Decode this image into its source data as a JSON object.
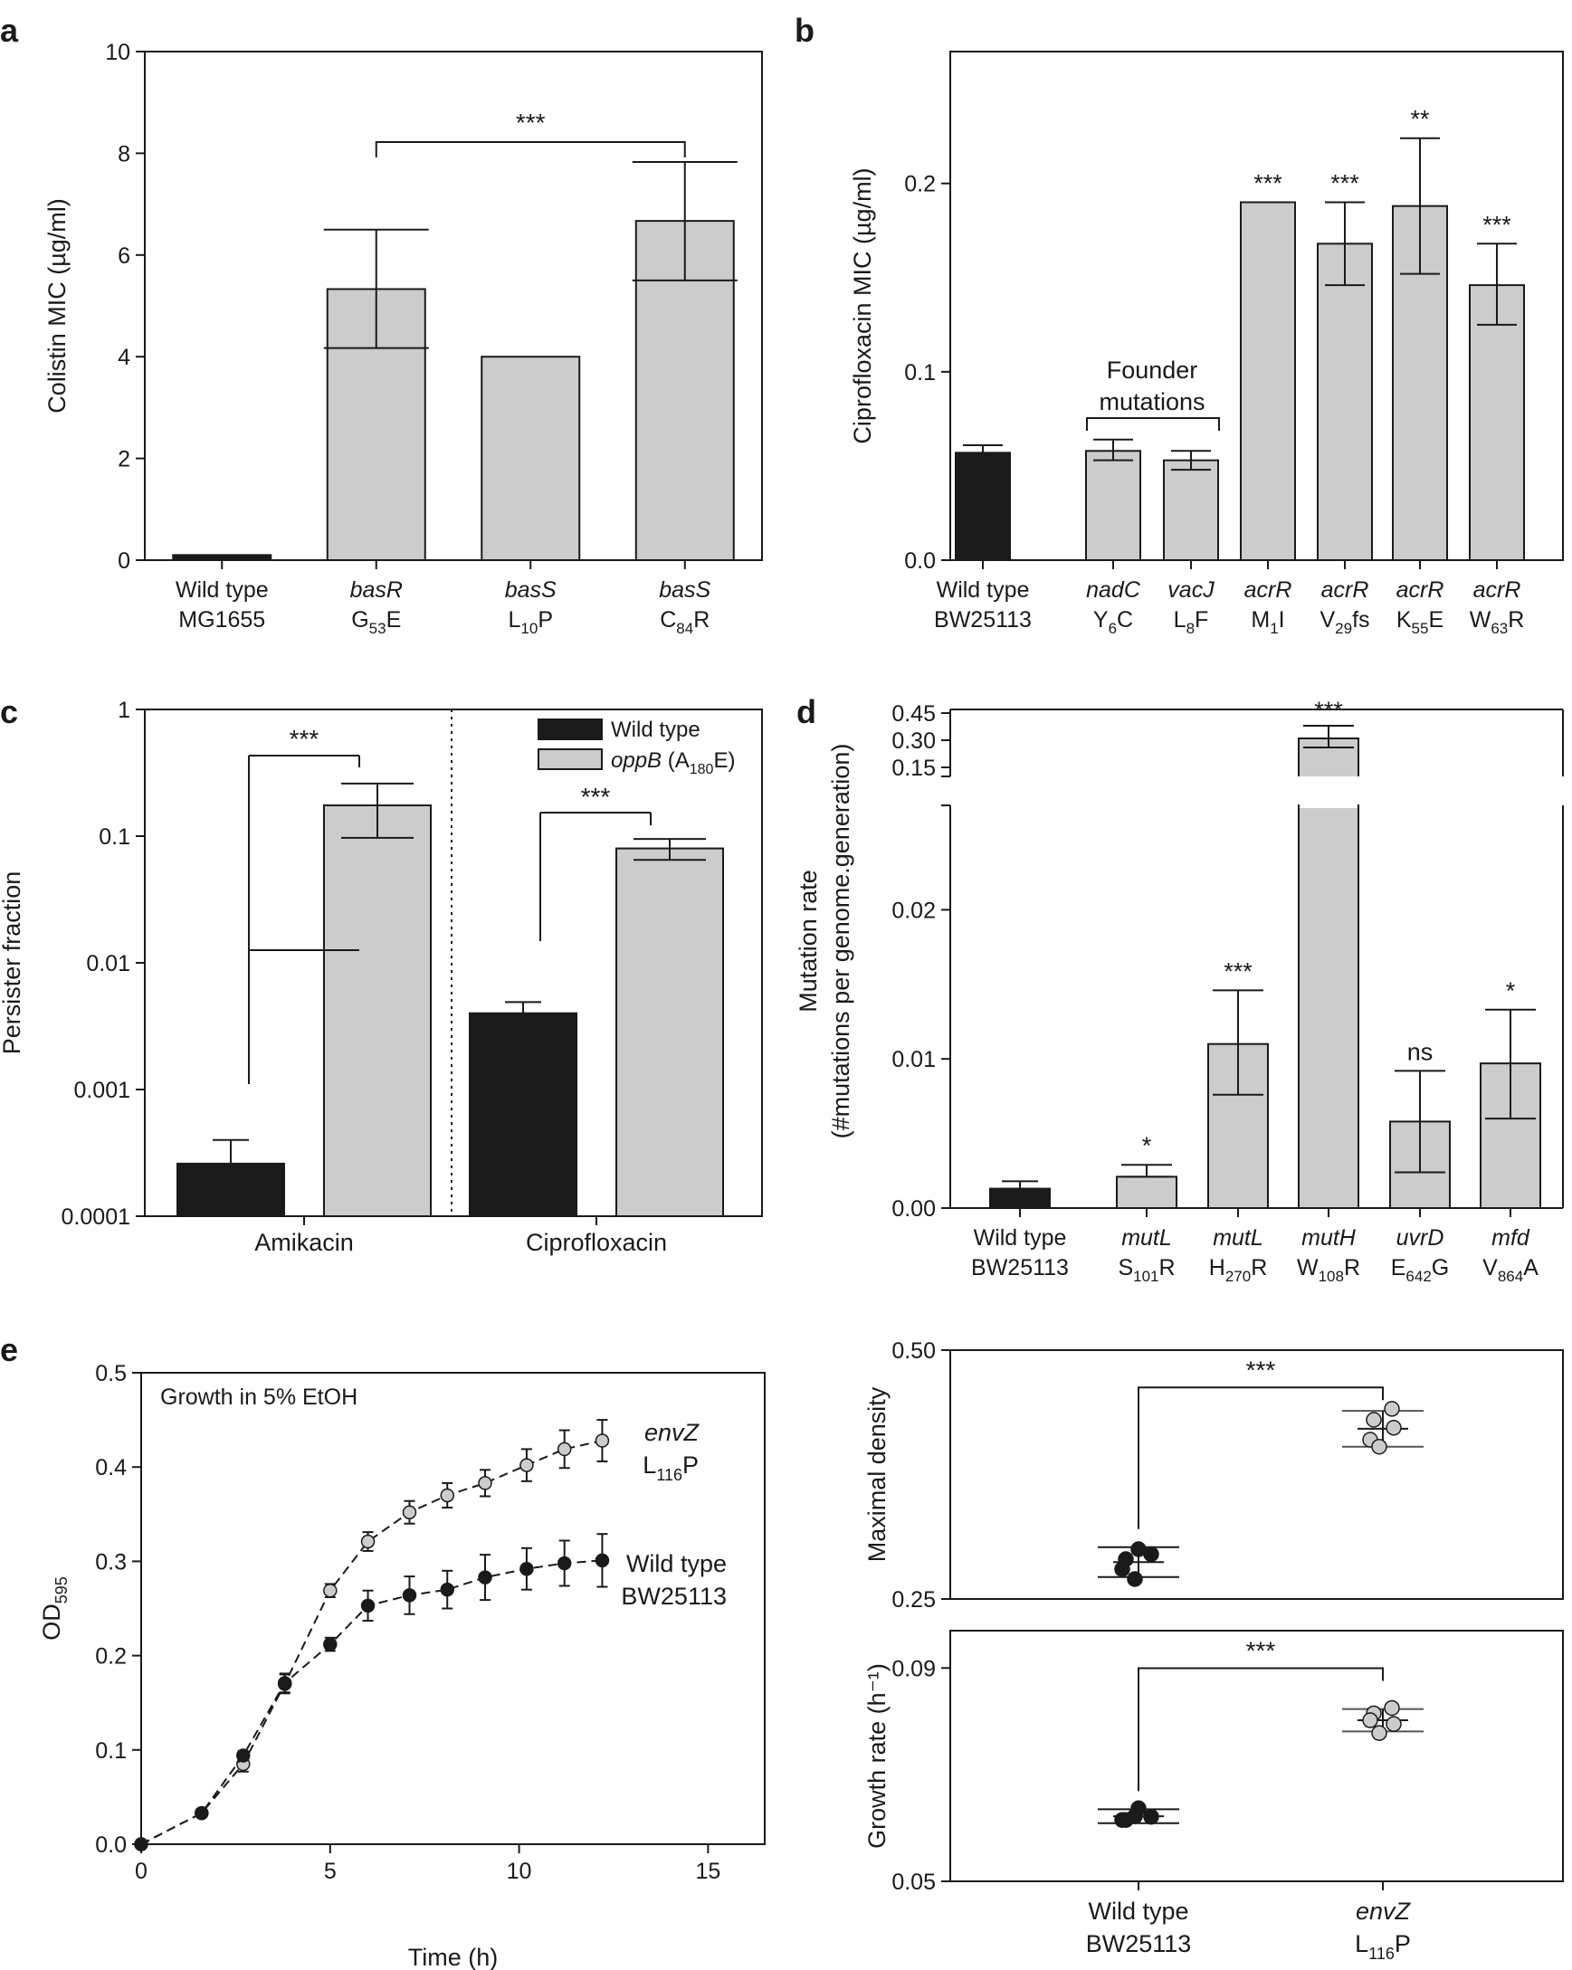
{
  "colors": {
    "black_bar": "#1a1a1a",
    "gray_bar": "#cccccc",
    "axis": "#1a1a1a",
    "gray_text": "#9a9a9a"
  },
  "panel_labels": [
    "a",
    "b",
    "c",
    "d",
    "e"
  ],
  "chart_data": [
    {
      "id": "a",
      "type": "bar",
      "ylabel": "Colistin MIC (µg/ml)",
      "ylim": [
        0,
        10
      ],
      "yticks": [
        "0",
        "2",
        "4",
        "6",
        "8",
        "10"
      ],
      "categories": [
        {
          "gene": "Wild type",
          "italic": false,
          "mut": {
            "pre": "MG1655",
            "sub": "",
            "post": ""
          }
        },
        {
          "gene": "basR",
          "italic": true,
          "mut": {
            "pre": "G",
            "sub": "53",
            "post": "E"
          }
        },
        {
          "gene": "basS",
          "italic": true,
          "mut": {
            "pre": "L",
            "sub": "10",
            "post": "P"
          }
        },
        {
          "gene": "basS",
          "italic": true,
          "mut": {
            "pre": "C",
            "sub": "84",
            "post": "R"
          }
        }
      ],
      "values": [
        0.1,
        5.33,
        4.0,
        6.67
      ],
      "err_low": [
        0.1,
        4.17,
        4.0,
        5.5
      ],
      "err_high": [
        0.1,
        6.5,
        4.0,
        7.83
      ],
      "colors": [
        "black",
        "gray",
        "gray",
        "gray"
      ],
      "brackets": [
        {
          "from": 1,
          "to": 3,
          "label": "***"
        }
      ],
      "annotations": []
    },
    {
      "id": "b",
      "type": "bar",
      "ylabel": "Ciprofloxacin MIC (µg/ml)",
      "ylim": [
        0,
        0.27
      ],
      "yticks": [
        "0.0",
        "0.1",
        "0.2"
      ],
      "categories": [
        {
          "gene": "Wild type",
          "italic": false,
          "mut": {
            "pre": "BW25113",
            "sub": "",
            "post": ""
          }
        },
        {
          "gene": "nadC",
          "italic": true,
          "mut": {
            "pre": "Y",
            "sub": "6",
            "post": "C"
          }
        },
        {
          "gene": "vacJ",
          "italic": true,
          "mut": {
            "pre": "L",
            "sub": "8",
            "post": "F"
          }
        },
        {
          "gene": "acrR",
          "italic": true,
          "mut": {
            "pre": "M",
            "sub": "1",
            "post": "I"
          }
        },
        {
          "gene": "acrR",
          "italic": true,
          "mut": {
            "pre": "V",
            "sub": "29",
            "post": "fs"
          }
        },
        {
          "gene": "acrR",
          "italic": true,
          "mut": {
            "pre": "K",
            "sub": "55",
            "post": "E"
          }
        },
        {
          "gene": "acrR",
          "italic": true,
          "mut": {
            "pre": "W",
            "sub": "63",
            "post": "R"
          }
        }
      ],
      "values": [
        0.057,
        0.058,
        0.053,
        0.19,
        0.168,
        0.188,
        0.146
      ],
      "err_low": [
        0.053,
        0.053,
        0.048,
        0.19,
        0.146,
        0.152,
        0.125
      ],
      "err_high": [
        0.061,
        0.064,
        0.058,
        0.19,
        0.19,
        0.224,
        0.168
      ],
      "colors": [
        "black",
        "gray",
        "gray",
        "gray",
        "gray",
        "gray",
        "gray"
      ],
      "stars": [
        "",
        "",
        "",
        "***",
        "***",
        "**",
        "***"
      ],
      "founder_label": [
        "Founder",
        "mutations"
      ]
    },
    {
      "id": "c",
      "type": "bar",
      "yscale": "log",
      "ylabel": "Persister fraction",
      "yticks": [
        "0.0001",
        "0.001",
        "0.01",
        "0.1",
        "1"
      ],
      "groups": [
        "Amikacin",
        "Ciprofloxacin"
      ],
      "series": [
        {
          "name": "Wild type",
          "values": [
            0.00026,
            0.004
          ],
          "err_high": [
            0.0004,
            0.0049
          ]
        },
        {
          "name": "oppB",
          "mut": {
            "pre": " (A",
            "sub": "180",
            "post": "E)"
          },
          "values": [
            0.175,
            0.08
          ],
          "err_low": [
            0.097,
            0.065
          ],
          "err_high": [
            0.26,
            0.095
          ]
        }
      ],
      "brackets": [
        {
          "group": 0,
          "label": "***"
        },
        {
          "group": 1,
          "label": "***"
        }
      ]
    },
    {
      "id": "d",
      "type": "bar",
      "broken_axis": true,
      "ylabel": [
        "Mutation rate",
        "(#mutations per genome.generation)"
      ],
      "yticks_lower": [
        "0.00",
        "0.01",
        "0.02"
      ],
      "yticks_upper": [
        "0.15",
        "0.30",
        "0.45"
      ],
      "categories": [
        {
          "gene": "Wild type",
          "italic": false,
          "mut": {
            "pre": "BW25113",
            "sub": "",
            "post": ""
          }
        },
        {
          "gene": "mutL",
          "italic": true,
          "mut": {
            "pre": "S",
            "sub": "101",
            "post": "R"
          }
        },
        {
          "gene": "mutL",
          "italic": true,
          "mut": {
            "pre": "H",
            "sub": "270",
            "post": "R"
          }
        },
        {
          "gene": "mutH",
          "italic": true,
          "mut": {
            "pre": "W",
            "sub": "108",
            "post": "R"
          }
        },
        {
          "gene": "uvrD",
          "italic": true,
          "mut": {
            "pre": "E",
            "sub": "642",
            "post": "G"
          }
        },
        {
          "gene": "mfd",
          "italic": true,
          "mut": {
            "pre": "V",
            "sub": "864",
            "post": "A"
          }
        }
      ],
      "values": [
        0.0013,
        0.0021,
        0.011,
        0.31,
        0.0058,
        0.0097
      ],
      "err_low": [
        0.0013,
        0.0021,
        0.0076,
        0.26,
        0.0024,
        0.006
      ],
      "err_high": [
        0.0018,
        0.0029,
        0.0146,
        0.38,
        0.0092,
        0.0133
      ],
      "colors": [
        "black",
        "gray",
        "gray",
        "gray",
        "gray",
        "gray"
      ],
      "stars": [
        "",
        "*",
        "***",
        "***",
        "ns",
        "*"
      ]
    },
    {
      "id": "e-growth",
      "type": "line",
      "title": "Growth in 5% EtOH",
      "xlabel": "Time (h)",
      "ylabel": {
        "pre": "OD",
        "sub": "595"
      },
      "xlim": [
        0,
        16.5
      ],
      "ylim": [
        0,
        0.5
      ],
      "xticks": [
        "0",
        "5",
        "10",
        "15"
      ],
      "yticks": [
        "0.0",
        "0.1",
        "0.2",
        "0.3",
        "0.4",
        "0.5"
      ],
      "series": [
        {
          "name": "envZ",
          "mut": {
            "pre": "L",
            "sub": "116",
            "post": "P"
          },
          "color": "gray",
          "x": [
            0,
            1.6,
            2.7,
            3.8,
            5.0,
            6.0,
            7.1,
            8.1,
            9.1,
            10.2,
            11.2,
            12.2
          ],
          "y": [
            0,
            0.033,
            0.085,
            0.17,
            0.269,
            0.321,
            0.352,
            0.37,
            0.383,
            0.402,
            0.419,
            0.428
          ],
          "err": [
            0.003,
            0.004,
            0.008,
            0.01,
            0.007,
            0.01,
            0.012,
            0.013,
            0.014,
            0.017,
            0.02,
            0.022
          ]
        },
        {
          "name": "Wild type",
          "name2": "BW25113",
          "color": "black",
          "x": [
            0,
            1.6,
            2.7,
            3.8,
            5.0,
            6.0,
            7.1,
            8.1,
            9.1,
            10.2,
            11.2,
            12.2
          ],
          "y": [
            0,
            0.033,
            0.094,
            0.171,
            0.212,
            0.253,
            0.264,
            0.27,
            0.283,
            0.292,
            0.298,
            0.301
          ],
          "err": [
            0.003,
            0.004,
            0.005,
            0.01,
            0.007,
            0.016,
            0.02,
            0.02,
            0.024,
            0.022,
            0.024,
            0.028
          ]
        }
      ]
    },
    {
      "id": "e-density",
      "type": "scatter",
      "ylabel": "Maximal density",
      "ylim": [
        0.25,
        0.5
      ],
      "yticks": [
        "0.25",
        "0.50"
      ],
      "groups": [
        "Wild type",
        "envZ"
      ],
      "points": [
        [
          0.3,
          0.29,
          0.295,
          0.28,
          0.27
        ],
        [
          0.441,
          0.43,
          0.422,
          0.41,
          0.403
        ]
      ],
      "mean": [
        0.287,
        0.421
      ],
      "sd": [
        0.015,
        0.018
      ],
      "bracket": "***"
    },
    {
      "id": "e-rate",
      "type": "scatter",
      "ylabel": "Growth rate (h⁻¹)",
      "ylim": [
        0.05,
        0.097
      ],
      "yticks": [
        "0.05",
        "0.09"
      ],
      "groups": [
        "Wild type",
        "envZ"
      ],
      "xlabels": [
        {
          "gene": "Wild type",
          "italic": false,
          "mut": {
            "pre": "BW25113",
            "sub": "",
            "post": ""
          }
        },
        {
          "gene": "envZ",
          "italic": true,
          "mut": {
            "pre": "L",
            "sub": "116",
            "post": "P"
          }
        }
      ],
      "points": [
        [
          0.0637,
          0.0615,
          0.0621,
          0.0615,
          0.0622
        ],
        [
          0.0825,
          0.0815,
          0.0795,
          0.0802,
          0.0778
        ]
      ],
      "mean": [
        0.0622,
        0.0802
      ],
      "sd": [
        0.0013,
        0.0021
      ],
      "bracket": "***"
    }
  ]
}
